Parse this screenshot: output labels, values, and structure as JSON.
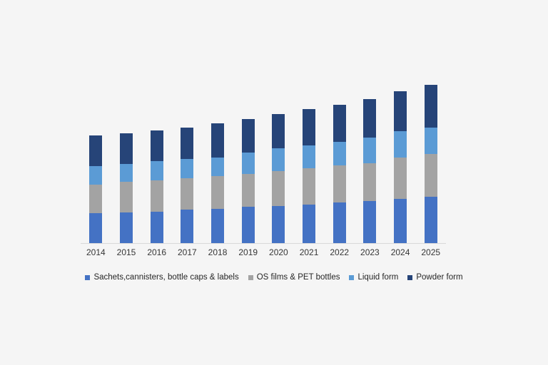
{
  "canvas": {
    "background_color": "#f5f5f5",
    "axis_line_color": "#d9d9d9",
    "label_color": "#363636"
  },
  "chart_data": {
    "type": "bar",
    "stacked": true,
    "title": "",
    "xlabel": "",
    "ylabel": "",
    "y_axis_visible": false,
    "grid": false,
    "legend_position": "bottom",
    "units": "relative height (no y-axis scale shown in image)",
    "categories": [
      "2014",
      "2015",
      "2016",
      "2017",
      "2018",
      "2019",
      "2020",
      "2021",
      "2022",
      "2023",
      "2024",
      "2025"
    ],
    "series": [
      {
        "name": "Sachets,cannisters, bottle caps & labels",
        "color": "#4472c4",
        "values": [
          42,
          43,
          44,
          47,
          48,
          51,
          52,
          54,
          57,
          59,
          62,
          65
        ]
      },
      {
        "name": "OS films & PET bottles",
        "color": "#a3a3a3",
        "values": [
          40,
          43,
          44,
          44,
          46,
          46,
          49,
          51,
          52,
          53,
          58,
          60
        ]
      },
      {
        "name": "Liquid form",
        "color": "#5b9bd5",
        "values": [
          26,
          25,
          27,
          27,
          26,
          30,
          32,
          32,
          33,
          36,
          37,
          37
        ]
      },
      {
        "name": "Powder form",
        "color": "#264478",
        "values": [
          43,
          43,
          43,
          44,
          48,
          47,
          48,
          51,
          52,
          54,
          56,
          60
        ]
      }
    ],
    "stack_order_bottom_to_top": [
      "Sachets,cannisters, bottle caps & labels",
      "OS films & PET bottles",
      "Liquid form",
      "Powder form"
    ],
    "totals": [
      151,
      154,
      158,
      162,
      168,
      174,
      181,
      188,
      194,
      202,
      213,
      222
    ]
  }
}
